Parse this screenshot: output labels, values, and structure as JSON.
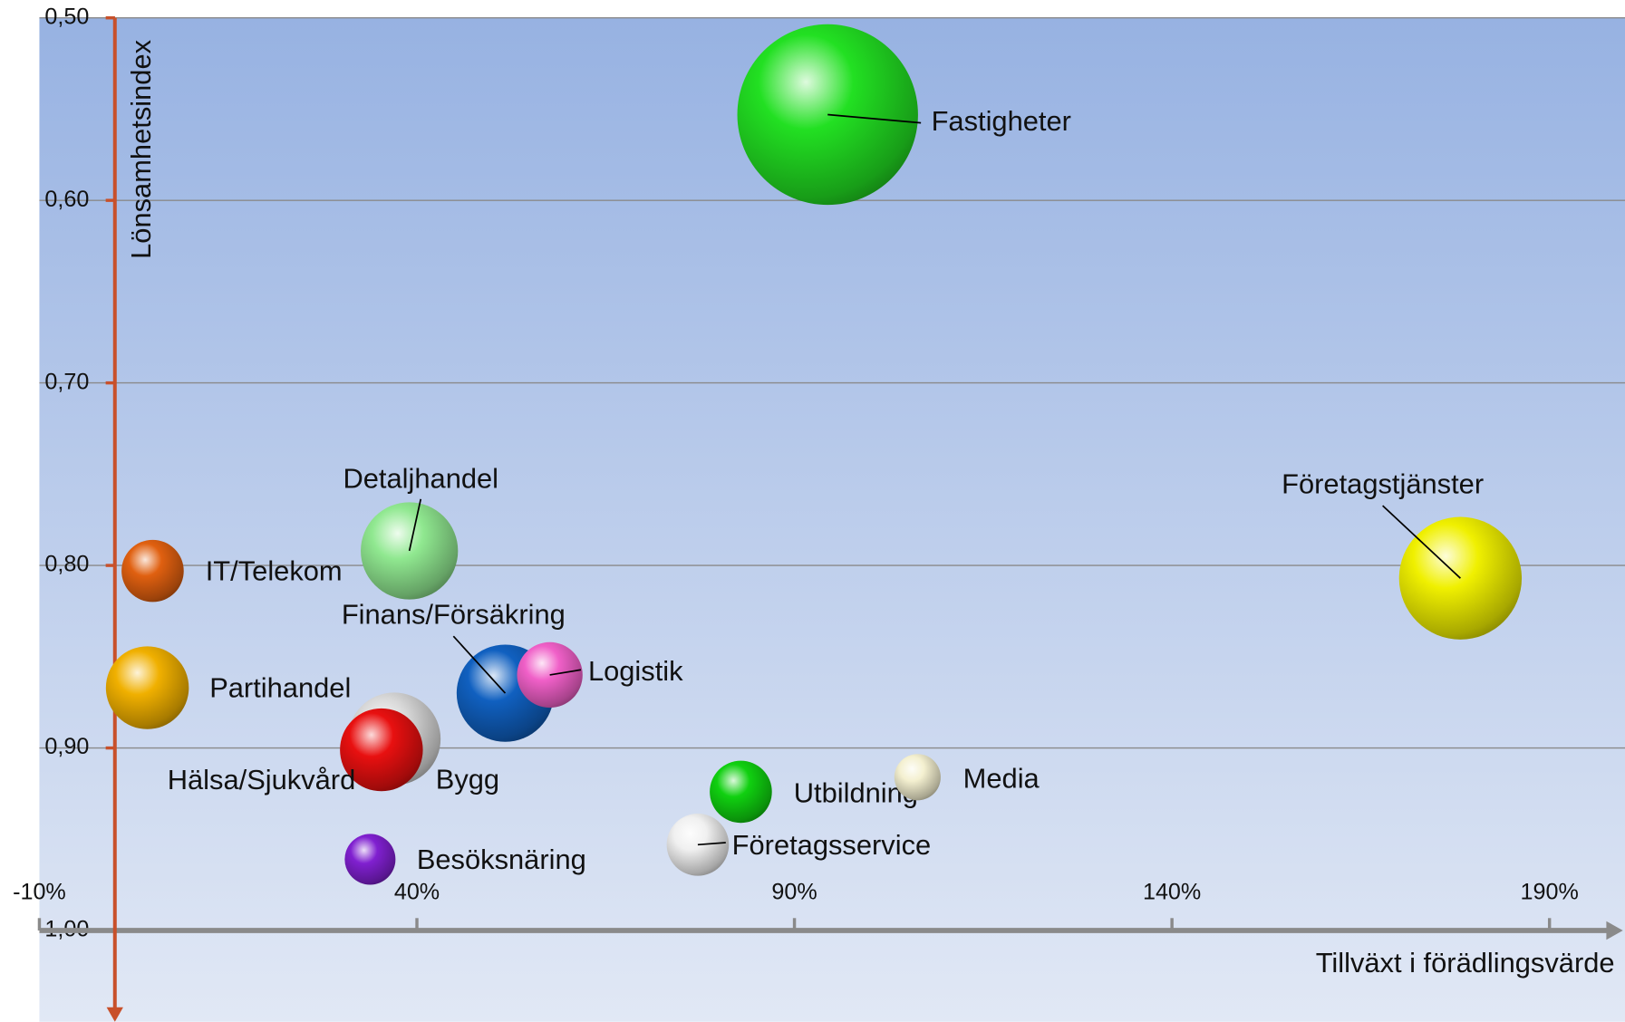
{
  "chart_data": {
    "type": "bubble",
    "x_axis_label": "Tillväxt i förädlingsvärde",
    "y_axis_label": "Lönsamhetsindex",
    "xlim": [
      -10,
      200
    ],
    "xticks": [
      {
        "value": -10,
        "label": "-10%"
      },
      {
        "value": 40,
        "label": "40%"
      },
      {
        "value": 90,
        "label": "90%"
      },
      {
        "value": 140,
        "label": "140%"
      },
      {
        "value": 190,
        "label": "190%"
      }
    ],
    "ylim": [
      0.5,
      1.05
    ],
    "y_reversed": true,
    "yticks": [
      {
        "value": 0.5,
        "label": "0,50"
      },
      {
        "value": 0.6,
        "label": "0,60"
      },
      {
        "value": 0.7,
        "label": "0,70"
      },
      {
        "value": 0.8,
        "label": "0,80"
      },
      {
        "value": 0.9,
        "label": "0,90"
      },
      {
        "value": 1.0,
        "label": "1,00"
      }
    ],
    "grid": true,
    "series": [
      {
        "name": "Fastigheter",
        "color": "#22e022",
        "x": [
          94.4
        ],
        "values": [
          0.553
        ],
        "sizes": [
          76
        ]
      },
      {
        "name": "Företagstjänster",
        "color": "#f0f000",
        "x": [
          178.2
        ],
        "values": [
          0.807
        ],
        "sizes": [
          35
        ]
      },
      {
        "name": "IT/Telekom",
        "color": "#e06010",
        "x": [
          5.0
        ],
        "values": [
          0.803
        ],
        "sizes": [
          9
        ]
      },
      {
        "name": "Detaljhandel",
        "color": "#90e890",
        "x": [
          39.0
        ],
        "values": [
          0.792
        ],
        "sizes": [
          22
        ]
      },
      {
        "name": "Partihandel",
        "color": "#f0b000",
        "x": [
          4.3
        ],
        "values": [
          0.867
        ],
        "sizes": [
          16
        ]
      },
      {
        "name": "Bygg",
        "color": "#d8d8d8",
        "x": [
          37.0
        ],
        "values": [
          0.895
        ],
        "sizes": [
          20
        ]
      },
      {
        "name": "Hälsa/Sjukvård",
        "color": "#e81010",
        "x": [
          35.3
        ],
        "values": [
          0.901
        ],
        "sizes": [
          16
        ]
      },
      {
        "name": "Finans/Försäkring",
        "color": "#1060c0",
        "x": [
          51.7
        ],
        "values": [
          0.87
        ],
        "sizes": [
          22
        ]
      },
      {
        "name": "Logistik",
        "color": "#f060c8",
        "x": [
          57.6
        ],
        "values": [
          0.86
        ],
        "sizes": [
          10
        ]
      },
      {
        "name": "Besöksnäring",
        "color": "#8020d0",
        "x": [
          33.8
        ],
        "values": [
          0.961
        ],
        "sizes": [
          6
        ]
      },
      {
        "name": "Utbildning",
        "color": "#10d010",
        "x": [
          82.9
        ],
        "values": [
          0.924
        ],
        "sizes": [
          9
        ]
      },
      {
        "name": "Media",
        "color": "#f4f0d0",
        "x": [
          106.3
        ],
        "values": [
          0.916
        ],
        "sizes": [
          5
        ]
      },
      {
        "name": "Företagsservice",
        "color": "#f0f0f0",
        "x": [
          77.2
        ],
        "values": [
          0.953
        ],
        "sizes": [
          9
        ]
      }
    ]
  }
}
